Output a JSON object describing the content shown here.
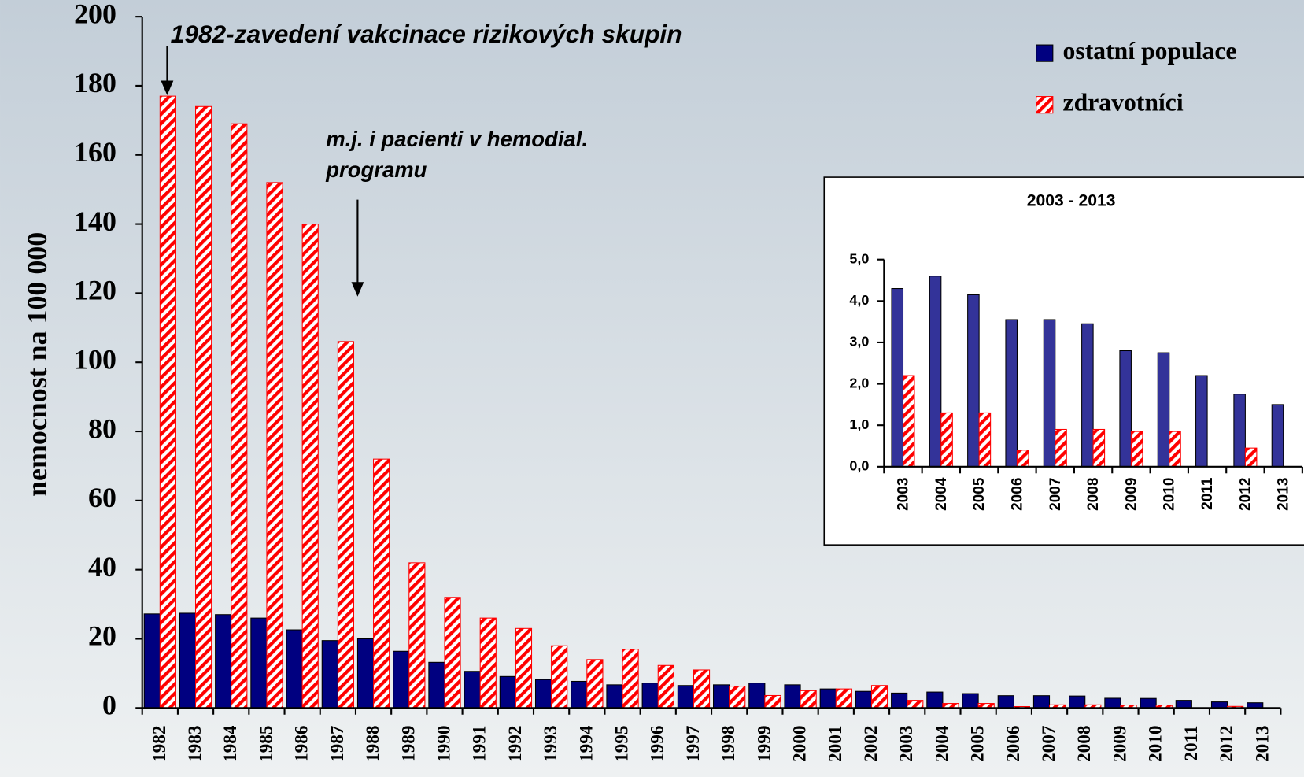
{
  "chart_data": [
    {
      "type": "bar",
      "ylabel": "nemocnost na 100 000",
      "annotations": [
        "1982-zavedení vakcinace rizikových skupin",
        "m.j. i pacienti v hemodial.",
        "programu"
      ],
      "categories": [
        "1982",
        "1983",
        "1984",
        "1985",
        "1986",
        "1987",
        "1988",
        "1989",
        "1990",
        "1991",
        "1992",
        "1993",
        "1994",
        "1995",
        "1996",
        "1997",
        "1998",
        "1999",
        "2000",
        "2001",
        "2002",
        "2003",
        "2004",
        "2005",
        "2006",
        "2007",
        "2008",
        "2009",
        "2010",
        "2011",
        "2012",
        "2013"
      ],
      "series": [
        {
          "name": "ostatní populace",
          "color": "#000080",
          "values": [
            27.2,
            27.4,
            27,
            26,
            22.6,
            19.5,
            20,
            16.4,
            13.2,
            10.6,
            9.1,
            8.2,
            7.7,
            6.7,
            7.2,
            6.5,
            6.7,
            7.2,
            6.7,
            5.5,
            4.8,
            4.3,
            4.6,
            4.15,
            3.55,
            3.55,
            3.45,
            2.8,
            2.75,
            2.2,
            1.75,
            1.5
          ]
        },
        {
          "name": "zdravotníci",
          "color": "#ff0000",
          "values": [
            177,
            174,
            169,
            152,
            140,
            106,
            72,
            42,
            32,
            26,
            23,
            18,
            14,
            17,
            12.3,
            11,
            6.3,
            3.6,
            5,
            5.5,
            6.5,
            2.2,
            1.3,
            1.3,
            0.4,
            0.9,
            0.9,
            0.85,
            0.85,
            0,
            0.45,
            0
          ]
        }
      ],
      "ylim": [
        0,
        200
      ],
      "yticks": [
        0,
        20,
        40,
        60,
        80,
        100,
        120,
        140,
        160,
        180,
        200
      ],
      "legend": "top-right"
    },
    {
      "type": "bar",
      "title": "2003 - 2013",
      "categories": [
        "2003",
        "2004",
        "2005",
        "2006",
        "2007",
        "2008",
        "2009",
        "2010",
        "2011",
        "2012",
        "2013"
      ],
      "series": [
        {
          "color": "#333399",
          "values": [
            4.3,
            4.6,
            4.15,
            3.55,
            3.55,
            3.45,
            2.8,
            2.75,
            2.2,
            1.75,
            1.5
          ]
        },
        {
          "color": "#ff0000",
          "values": [
            2.2,
            1.3,
            1.3,
            0.4,
            0.9,
            0.9,
            0.85,
            0.85,
            0,
            0.45,
            0
          ]
        }
      ],
      "ylim": [
        0,
        5
      ],
      "yticks": [
        {
          "value": 0,
          "label": "0,0"
        },
        {
          "value": 1,
          "label": "1,0"
        },
        {
          "value": 2,
          "label": "2,0"
        },
        {
          "value": 3,
          "label": "3,0"
        },
        {
          "value": 4,
          "label": "4,0"
        },
        {
          "value": 5,
          "label": "5,0"
        }
      ]
    }
  ]
}
